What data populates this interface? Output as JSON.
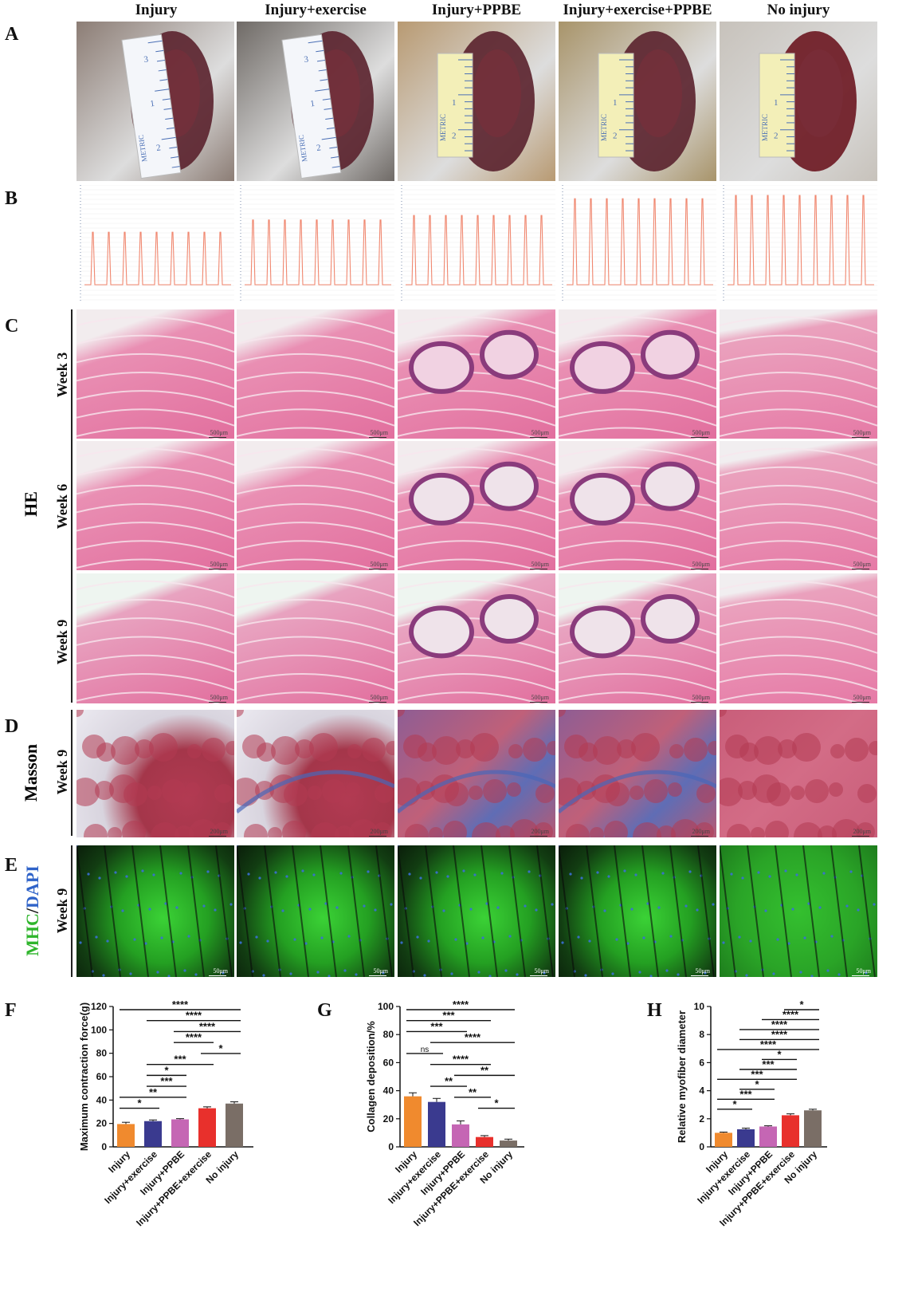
{
  "columns": [
    "Injury",
    "Injury+exercise",
    "Injury+PPBE",
    "Injury+exercise+PPBE",
    "No injury"
  ],
  "panels": {
    "A": "A",
    "B": "B",
    "C": "C",
    "D": "D",
    "E": "E",
    "F": "F",
    "G": "G",
    "H": "H"
  },
  "ruler_text": [
    "METRIC",
    "1",
    "2",
    "3"
  ],
  "row_labels": {
    "he": "HE",
    "masson": "Masson",
    "week3": "Week 3",
    "week6": "Week 6",
    "week9": "Week 9",
    "mhc": "MHC",
    "slash": "/",
    "dapi": "DAPI"
  },
  "scalebars": {
    "he": "500μm",
    "masson": "200μm",
    "if": "50μm"
  },
  "trace_heights": [
    0.47,
    0.58,
    0.62,
    0.77,
    0.8
  ],
  "colors": {
    "bars": [
      "#f08a2e",
      "#3a3a8f",
      "#c566b4",
      "#e8302c",
      "#7a6e66"
    ],
    "trace": "#f0876f",
    "he_pink": "#e87aa6",
    "masson_red": "#b23a52",
    "masson_blue": "#4a66b8",
    "mhc_green": "#3bd236",
    "dapi_blue": "#3b6fd6"
  },
  "chart_data": [
    {
      "type": "bar",
      "panel": "F",
      "categories": [
        "Injury",
        "Injury+exercise",
        "Injury+PPBE",
        "Injury+PPBE+exercise",
        "No injury"
      ],
      "values": [
        19.5,
        22,
        23.5,
        33,
        37
      ],
      "errors": [
        1.5,
        1,
        0.6,
        1.2,
        1.5
      ],
      "ylabel": "Maximum contraction force(g)",
      "ylim": [
        0,
        120
      ],
      "yticks": [
        0,
        20,
        40,
        60,
        80,
        100,
        120
      ],
      "significance": [
        {
          "from": 0,
          "to": 4,
          "label": "****"
        },
        {
          "from": 1,
          "to": 4,
          "label": "****"
        },
        {
          "from": 2,
          "to": 4,
          "label": "****"
        },
        {
          "from": 2,
          "to": 3,
          "label": "****"
        },
        {
          "from": 3,
          "to": 4,
          "label": "*"
        },
        {
          "from": 1,
          "to": 3,
          "label": "***"
        },
        {
          "from": 1,
          "to": 2,
          "label": "*"
        },
        {
          "from": 1,
          "to": 2,
          "label": "***"
        },
        {
          "from": 0,
          "to": 2,
          "label": "**"
        },
        {
          "from": 0,
          "to": 1,
          "label": "*"
        }
      ]
    },
    {
      "type": "bar",
      "panel": "G",
      "categories": [
        "Injury",
        "Injury+exercise",
        "Injury+PPBE",
        "Injury+PPBE+exercise",
        "No injury"
      ],
      "values": [
        36,
        32,
        16,
        7,
        4.5
      ],
      "errors": [
        2.5,
        2.5,
        2.5,
        1,
        1
      ],
      "ylabel": "Collagen deposition/%",
      "ylim": [
        0,
        100
      ],
      "yticks": [
        0,
        20,
        40,
        60,
        80,
        100
      ],
      "significance": [
        {
          "from": 0,
          "to": 4,
          "label": "****"
        },
        {
          "from": 0,
          "to": 3,
          "label": "***"
        },
        {
          "from": 0,
          "to": 2,
          "label": "***"
        },
        {
          "from": 1,
          "to": 4,
          "label": "****"
        },
        {
          "from": 0,
          "to": 1,
          "label": "ns"
        },
        {
          "from": 1,
          "to": 3,
          "label": "****"
        },
        {
          "from": 2,
          "to": 4,
          "label": "**"
        },
        {
          "from": 1,
          "to": 2,
          "label": "**"
        },
        {
          "from": 2,
          "to": 3,
          "label": "**"
        },
        {
          "from": 3,
          "to": 4,
          "label": "*"
        }
      ]
    },
    {
      "type": "bar",
      "panel": "H",
      "categories": [
        "Injury",
        "Injury+exercise",
        "Injury+PPBE",
        "Injury+PPBE+exercise",
        "No injury"
      ],
      "values": [
        1,
        1.25,
        1.45,
        2.25,
        2.6
      ],
      "errors": [
        0.05,
        0.08,
        0.05,
        0.1,
        0.08
      ],
      "ylabel": "Relative myofiber diameter",
      "ylim": [
        0,
        10
      ],
      "yticks": [
        0,
        2,
        4,
        6,
        8,
        10
      ],
      "significance": [
        {
          "from": 3,
          "to": 4,
          "label": "*"
        },
        {
          "from": 2,
          "to": 4,
          "label": "****"
        },
        {
          "from": 1,
          "to": 4,
          "label": "****"
        },
        {
          "from": 1,
          "to": 4,
          "label": "****"
        },
        {
          "from": 0,
          "to": 4,
          "label": "****"
        },
        {
          "from": 2,
          "to": 3,
          "label": "*"
        },
        {
          "from": 1,
          "to": 3,
          "label": "***"
        },
        {
          "from": 0,
          "to": 3,
          "label": "***"
        },
        {
          "from": 1,
          "to": 2,
          "label": "*"
        },
        {
          "from": 0,
          "to": 2,
          "label": "***"
        },
        {
          "from": 0,
          "to": 1,
          "label": "*"
        }
      ]
    }
  ]
}
